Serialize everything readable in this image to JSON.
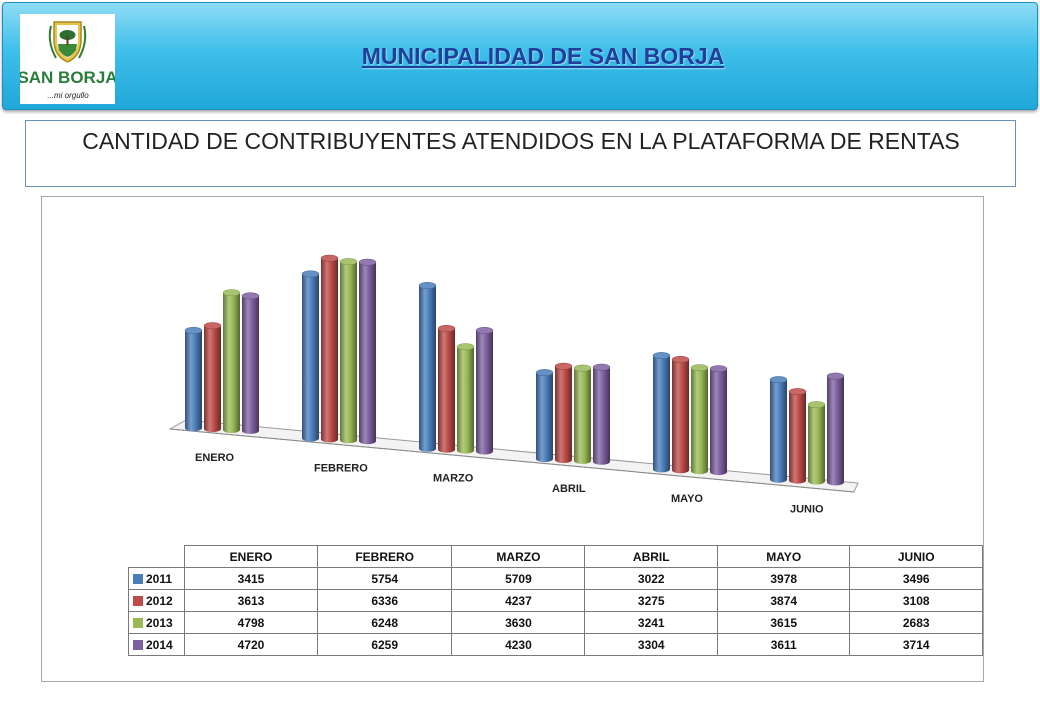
{
  "header": {
    "title": "MUNICIPALIDAD DE SAN BORJA",
    "logo": {
      "name": "SAN BORJA",
      "tagline": "...mi orgullo"
    }
  },
  "subtitle": "CANTIDAD DE CONTRIBUYENTES ATENDIDOS EN LA PLATAFORMA DE RENTAS",
  "chart_data": {
    "type": "bar",
    "style": "3d-cylinder",
    "categories": [
      "ENERO",
      "FEBRERO",
      "MARZO",
      "ABRIL",
      "MAYO",
      "JUNIO"
    ],
    "series": [
      {
        "name": "2011",
        "color": "#4a7ebb",
        "values": [
          3415,
          5754,
          5709,
          3022,
          3978,
          3496
        ]
      },
      {
        "name": "2012",
        "color": "#be4b48",
        "values": [
          3613,
          6336,
          4237,
          3275,
          3874,
          3108
        ]
      },
      {
        "name": "2013",
        "color": "#98b954",
        "values": [
          4798,
          6248,
          3630,
          3241,
          3615,
          2683
        ]
      },
      {
        "name": "2014",
        "color": "#7d60a0",
        "values": [
          4720,
          6259,
          4230,
          3304,
          3611,
          3714
        ]
      }
    ],
    "data_table": true,
    "legend": "data-table"
  }
}
